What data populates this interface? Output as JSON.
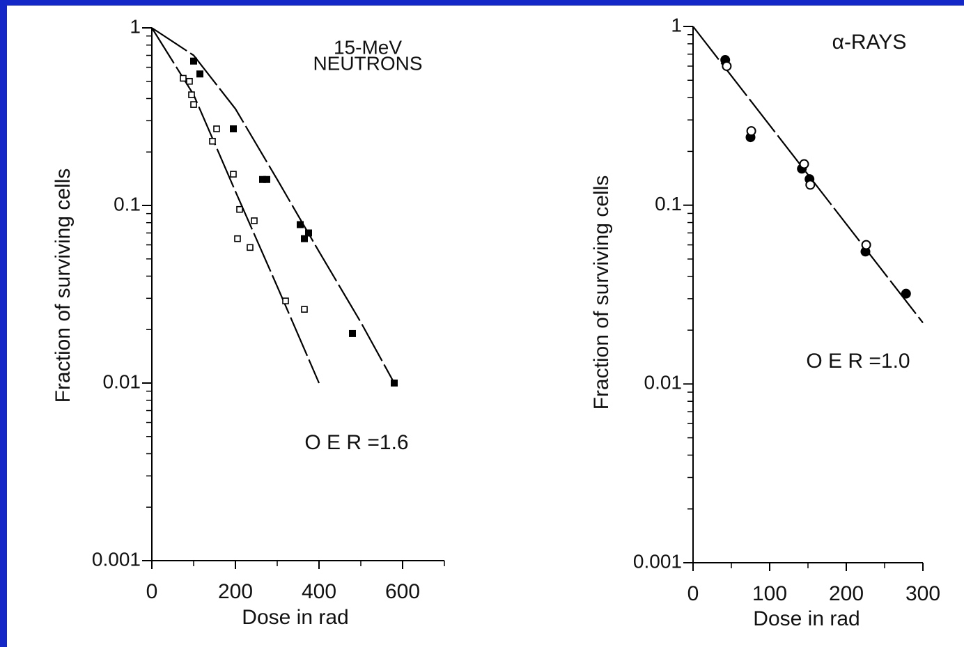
{
  "chart_data": [
    {
      "type": "scatter",
      "log_y": true,
      "x_label": "Dose in rad",
      "y_label": "Fraction of surviving cells",
      "annotations": [
        "15-MeV",
        "NEUTRONS",
        "O E R =1.6"
      ],
      "xlim": [
        0,
        700
      ],
      "xticks": [
        0,
        200,
        400,
        600
      ],
      "ylim": [
        0.001,
        1
      ],
      "yticks": [
        0.001,
        0.01,
        0.1,
        1
      ],
      "series": [
        {
          "marker": "filled-square",
          "color": "#000000",
          "x": [
            100,
            115,
            195,
            265,
            275,
            355,
            365,
            375,
            480,
            580
          ],
          "values": [
            0.65,
            0.55,
            0.27,
            0.14,
            0.14,
            0.078,
            0.065,
            0.07,
            0.019,
            0.01
          ]
        },
        {
          "marker": "open-square",
          "color": "#000000",
          "x": [
            75,
            90,
            95,
            100,
            145,
            155,
            195,
            205,
            210,
            235,
            245,
            320,
            365
          ],
          "values": [
            0.52,
            0.5,
            0.42,
            0.37,
            0.23,
            0.27,
            0.15,
            0.065,
            0.095,
            0.058,
            0.082,
            0.029,
            0.026
          ]
        }
      ],
      "curves": [
        {
          "color": "#000000",
          "x": [
            0,
            100,
            200,
            300,
            400,
            500,
            580
          ],
          "values": [
            1,
            0.7,
            0.35,
            0.14,
            0.055,
            0.022,
            0.01
          ]
        },
        {
          "color": "#000000",
          "x": [
            0,
            100,
            200,
            300,
            400
          ],
          "values": [
            1,
            0.42,
            0.12,
            0.035,
            0.01
          ]
        }
      ]
    },
    {
      "type": "scatter",
      "log_y": true,
      "x_label": "Dose in rad",
      "y_label": "Fraction of surviving cells",
      "annotations": [
        "α-RAYS",
        "O E R =1.0"
      ],
      "xlim": [
        0,
        300
      ],
      "xticks": [
        0,
        100,
        200,
        300
      ],
      "ylim": [
        0.001,
        1
      ],
      "yticks": [
        0.001,
        0.01,
        0.1,
        1
      ],
      "series": [
        {
          "marker": "filled-circle",
          "color": "#000000",
          "x": [
            42,
            75,
            142,
            152,
            225,
            278
          ],
          "values": [
            0.65,
            0.24,
            0.16,
            0.14,
            0.055,
            0.032
          ]
        },
        {
          "marker": "open-circle",
          "color": "#000000",
          "x": [
            44,
            76,
            145,
            153,
            226
          ],
          "values": [
            0.6,
            0.26,
            0.17,
            0.13,
            0.06
          ]
        }
      ],
      "curves": [
        {
          "color": "#000000",
          "x": [
            0,
            300
          ],
          "values": [
            1,
            0.022
          ]
        }
      ]
    }
  ]
}
